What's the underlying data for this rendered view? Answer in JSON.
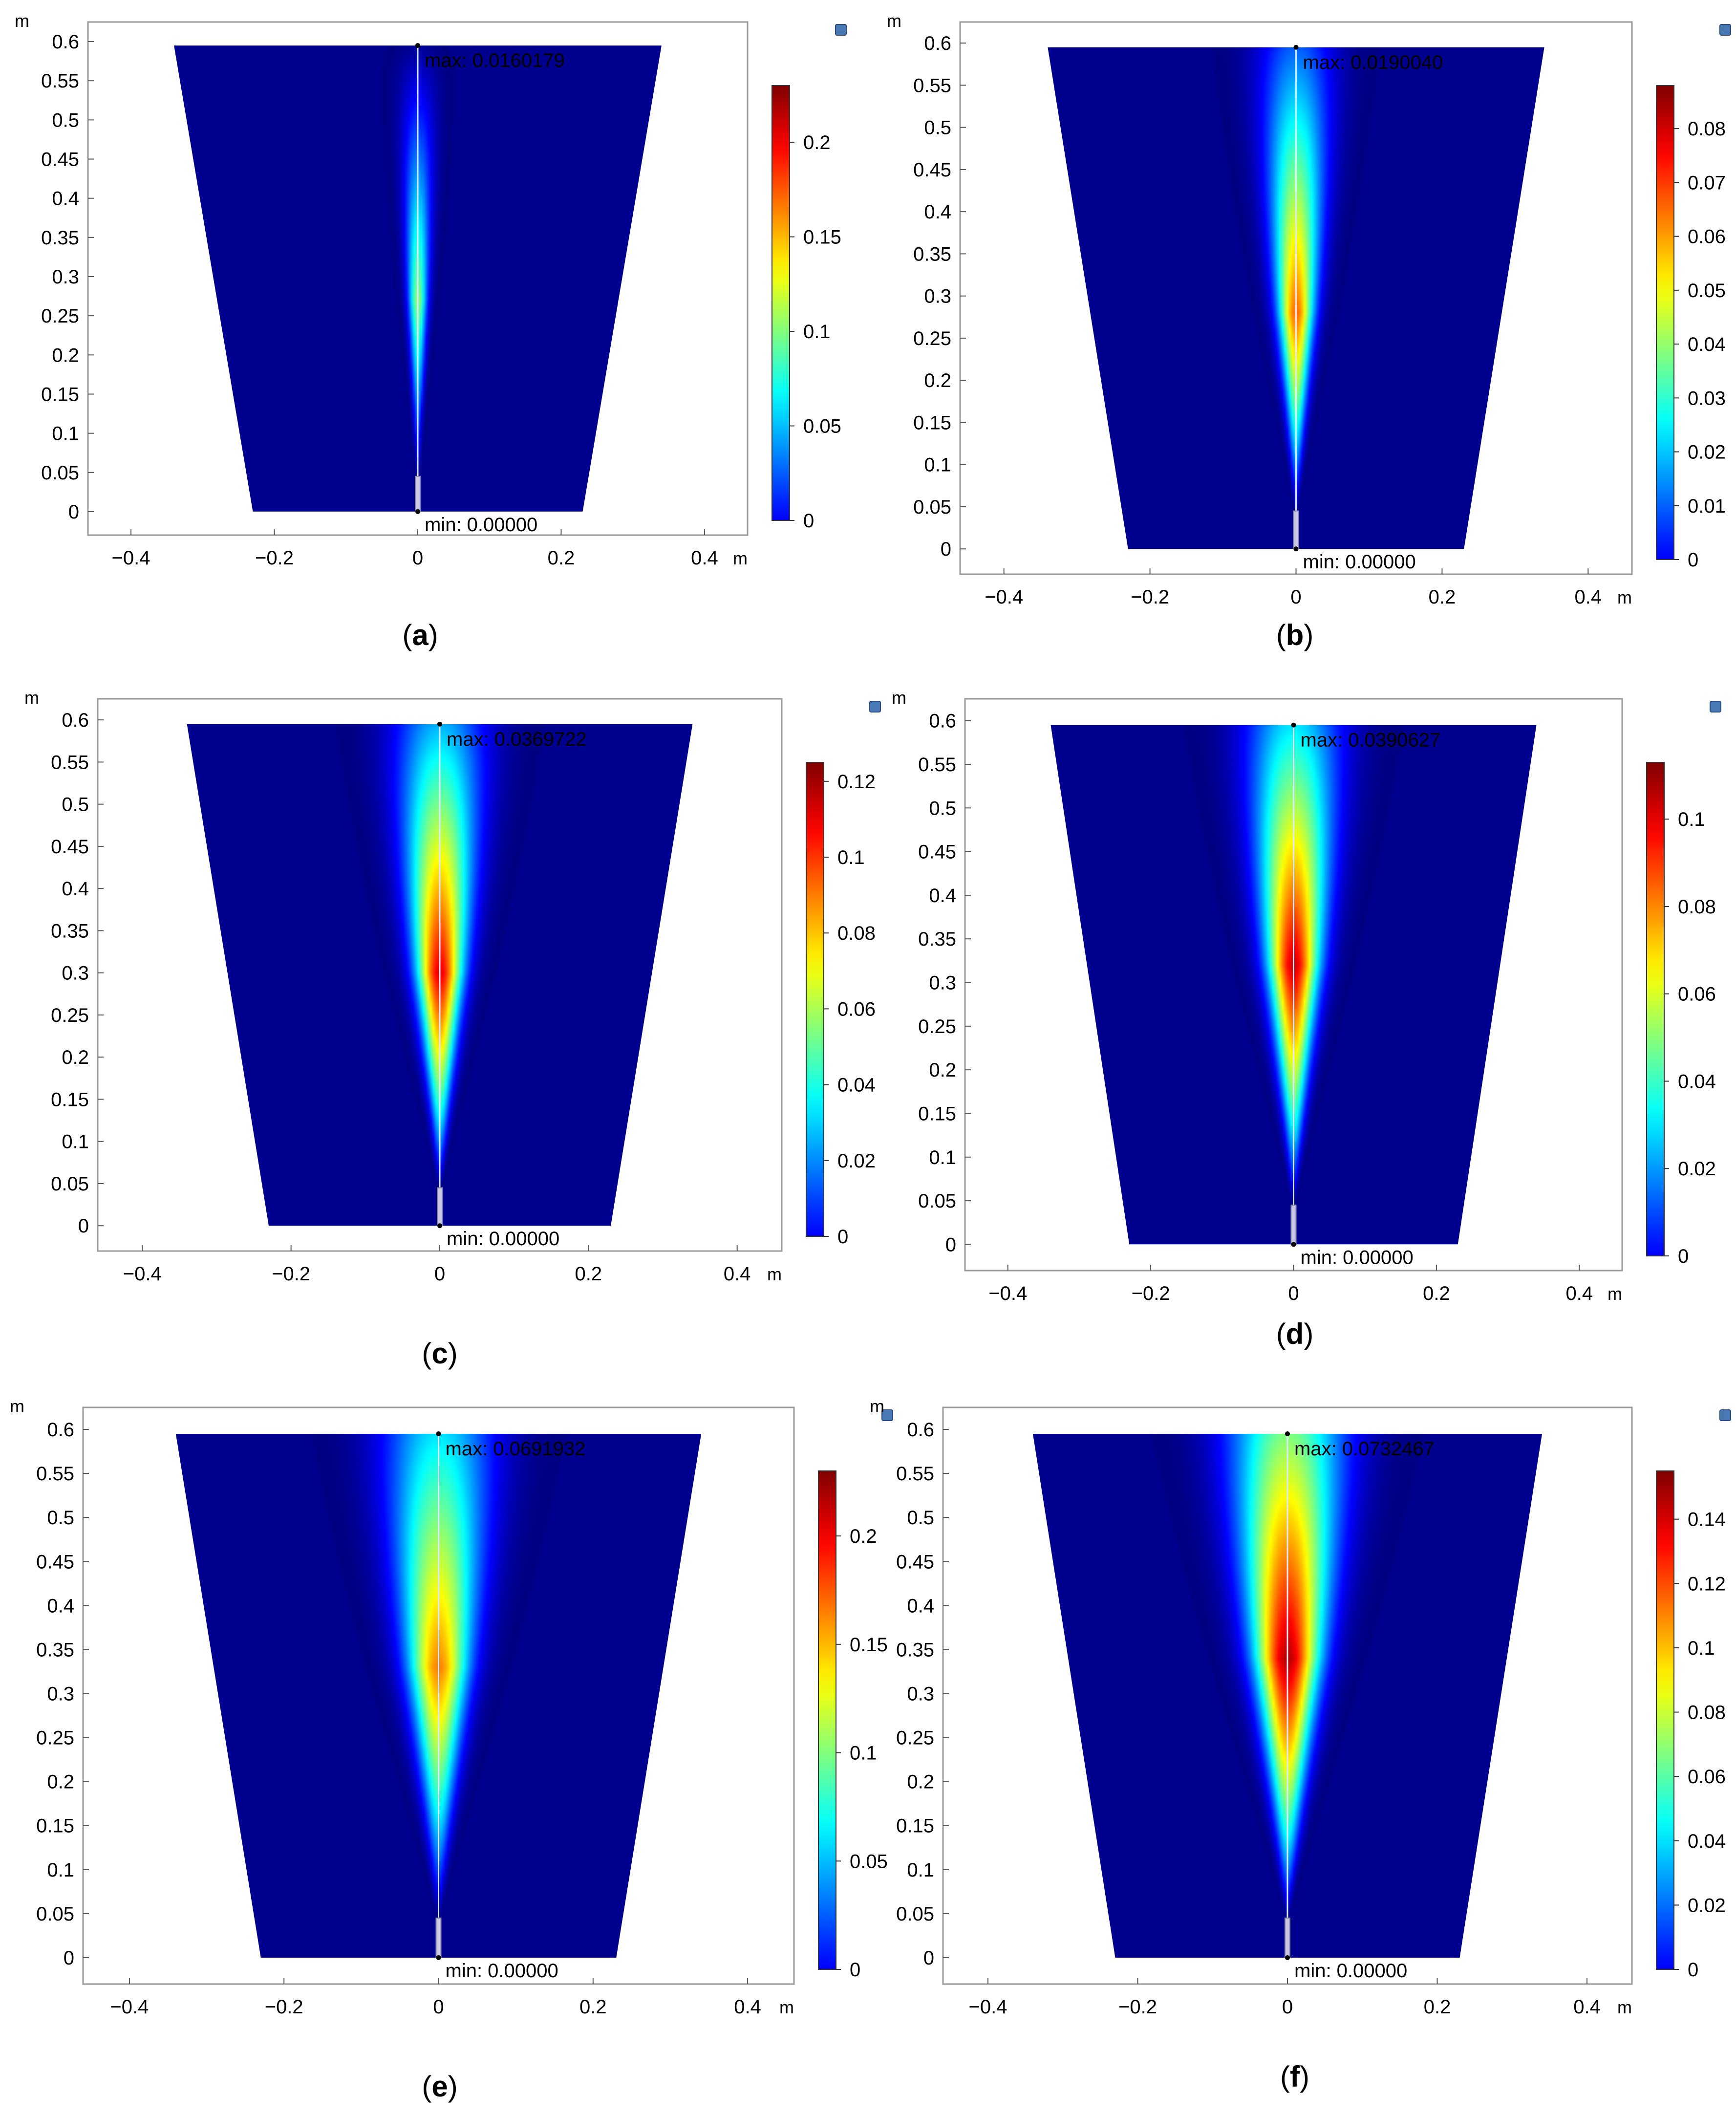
{
  "chart_data": [
    {
      "type": "heatmap",
      "panel_label": "a",
      "xlabel": "m",
      "ylabel": "m",
      "xlim": [
        -0.46,
        0.46
      ],
      "ylim": [
        -0.03,
        0.625
      ],
      "x_ticks": [
        "−0.4",
        "−0.2",
        "0",
        "0.2",
        "0.4"
      ],
      "y_ticks": [
        "0",
        "0.05",
        "0.1",
        "0.15",
        "0.2",
        "0.25",
        "0.3",
        "0.35",
        "0.4",
        "0.45",
        "0.5",
        "0.55",
        "0.6"
      ],
      "domain": {
        "top_y": 0.595,
        "bottom_y": 0,
        "top_x": [
          -0.34,
          0.34
        ],
        "bottom_x": [
          -0.23,
          0.23
        ]
      },
      "max_label": "max: 0.0160179",
      "min_label": "min: 0.00000",
      "colorbar": {
        "min": 0,
        "max": 0.23,
        "ticks": [
          "0",
          "0.05",
          "0.1",
          "0.15",
          "0.2"
        ],
        "tick_values": [
          0,
          0.05,
          0.1,
          0.15,
          0.2
        ]
      },
      "plume": {
        "peak_y": 0.27,
        "peak_level": 0.52,
        "width_at_top": 0.025,
        "top_level": 0.02
      }
    },
    {
      "type": "heatmap",
      "panel_label": "b",
      "xlabel": "m",
      "ylabel": "m",
      "xlim": [
        -0.46,
        0.46
      ],
      "ylim": [
        -0.03,
        0.625
      ],
      "x_ticks": [
        "−0.4",
        "−0.2",
        "0",
        "0.2",
        "0.4"
      ],
      "y_ticks": [
        "0",
        "0.05",
        "0.1",
        "0.15",
        "0.2",
        "0.25",
        "0.3",
        "0.35",
        "0.4",
        "0.45",
        "0.5",
        "0.55",
        "0.6"
      ],
      "domain": {
        "top_y": 0.595,
        "bottom_y": 0,
        "top_x": [
          -0.34,
          0.34
        ],
        "bottom_x": [
          -0.23,
          0.23
        ]
      },
      "max_label": "max: 0.0190040",
      "min_label": "min: 0.00000",
      "colorbar": {
        "min": 0,
        "max": 0.088,
        "ticks": [
          "0",
          "0.01",
          "0.02",
          "0.03",
          "0.04",
          "0.05",
          "0.06",
          "0.07",
          "0.08"
        ],
        "tick_values": [
          0,
          0.01,
          0.02,
          0.03,
          0.04,
          0.05,
          0.06,
          0.07,
          0.08
        ]
      },
      "plume": {
        "peak_y": 0.28,
        "peak_level": 0.78,
        "width_at_top": 0.05,
        "top_level": 0.22
      }
    },
    {
      "type": "heatmap",
      "panel_label": "c",
      "xlabel": "m",
      "ylabel": "m",
      "xlim": [
        -0.46,
        0.46
      ],
      "ylim": [
        -0.03,
        0.625
      ],
      "x_ticks": [
        "−0.4",
        "−0.2",
        "0",
        "0.2",
        "0.4"
      ],
      "y_ticks": [
        "0",
        "0.05",
        "0.1",
        "0.15",
        "0.2",
        "0.25",
        "0.3",
        "0.35",
        "0.4",
        "0.45",
        "0.5",
        "0.55",
        "0.6"
      ],
      "domain": {
        "top_y": 0.595,
        "bottom_y": 0,
        "top_x": [
          -0.34,
          0.34
        ],
        "bottom_x": [
          -0.23,
          0.23
        ]
      },
      "max_label": "max: 0.0369722",
      "min_label": "min: 0.00000",
      "colorbar": {
        "min": 0,
        "max": 0.125,
        "ticks": [
          "0",
          "0.02",
          "0.04",
          "0.06",
          "0.08",
          "0.1",
          "0.12"
        ],
        "tick_values": [
          0,
          0.02,
          0.04,
          0.06,
          0.08,
          0.1,
          0.12
        ]
      },
      "plume": {
        "peak_y": 0.3,
        "peak_level": 0.9,
        "width_at_top": 0.06,
        "top_level": 0.3
      }
    },
    {
      "type": "heatmap",
      "panel_label": "d",
      "xlabel": "m",
      "ylabel": "m",
      "xlim": [
        -0.46,
        0.46
      ],
      "ylim": [
        -0.03,
        0.625
      ],
      "x_ticks": [
        "−0.4",
        "−0.2",
        "0",
        "0.2",
        "0.4"
      ],
      "y_ticks": [
        "0",
        "0.05",
        "0.1",
        "0.15",
        "0.2",
        "0.25",
        "0.3",
        "0.35",
        "0.4",
        "0.45",
        "0.5",
        "0.55",
        "0.6"
      ],
      "domain": {
        "top_y": 0.595,
        "bottom_y": 0,
        "top_x": [
          -0.34,
          0.34
        ],
        "bottom_x": [
          -0.23,
          0.23
        ]
      },
      "max_label": "max: 0.0390627",
      "min_label": "min: 0.00000",
      "colorbar": {
        "min": 0,
        "max": 0.113,
        "ticks": [
          "0",
          "0.02",
          "0.04",
          "0.06",
          "0.08",
          "0.1"
        ],
        "tick_values": [
          0,
          0.02,
          0.04,
          0.06,
          0.08,
          0.1
        ]
      },
      "plume": {
        "peak_y": 0.32,
        "peak_level": 0.92,
        "width_at_top": 0.065,
        "top_level": 0.35
      }
    },
    {
      "type": "heatmap",
      "panel_label": "e",
      "xlabel": "m",
      "ylabel": "m",
      "xlim": [
        -0.46,
        0.46
      ],
      "ylim": [
        -0.03,
        0.625
      ],
      "x_ticks": [
        "−0.4",
        "−0.2",
        "0",
        "0.2",
        "0.4"
      ],
      "y_ticks": [
        "0",
        "0.05",
        "0.1",
        "0.15",
        "0.2",
        "0.25",
        "0.3",
        "0.35",
        "0.4",
        "0.45",
        "0.5",
        "0.55",
        "0.6"
      ],
      "domain": {
        "top_y": 0.595,
        "bottom_y": 0,
        "top_x": [
          -0.34,
          0.34
        ],
        "bottom_x": [
          -0.23,
          0.23
        ]
      },
      "max_label": "max: 0.0691932",
      "min_label": "min: 0.00000",
      "colorbar": {
        "min": 0,
        "max": 0.23,
        "ticks": [
          "0",
          "0.05",
          "0.1",
          "0.15",
          "0.2"
        ],
        "tick_values": [
          0,
          0.05,
          0.1,
          0.15,
          0.2
        ]
      },
      "plume": {
        "peak_y": 0.33,
        "peak_level": 0.75,
        "width_at_top": 0.07,
        "top_level": 0.35
      }
    },
    {
      "type": "heatmap",
      "panel_label": "f",
      "xlabel": "m",
      "ylabel": "m",
      "xlim": [
        -0.46,
        0.46
      ],
      "ylim": [
        -0.03,
        0.625
      ],
      "x_ticks": [
        "−0.4",
        "−0.2",
        "0",
        "0.2",
        "0.4"
      ],
      "y_ticks": [
        "0",
        "0.05",
        "0.1",
        "0.15",
        "0.2",
        "0.25",
        "0.3",
        "0.35",
        "0.4",
        "0.45",
        "0.5",
        "0.55",
        "0.6"
      ],
      "domain": {
        "top_y": 0.595,
        "bottom_y": 0,
        "top_x": [
          -0.34,
          0.34
        ],
        "bottom_x": [
          -0.23,
          0.23
        ]
      },
      "max_label": "max: 0.0732467",
      "min_label": "min: 0.00000",
      "colorbar": {
        "min": 0,
        "max": 0.155,
        "ticks": [
          "0",
          "0.02",
          "0.04",
          "0.06",
          "0.08",
          "0.1",
          "0.12",
          "0.14"
        ],
        "tick_values": [
          0,
          0.02,
          0.04,
          0.06,
          0.08,
          0.1,
          0.12,
          0.14
        ]
      },
      "plume": {
        "peak_y": 0.34,
        "peak_level": 0.95,
        "width_at_top": 0.075,
        "top_level": 0.5
      }
    }
  ]
}
